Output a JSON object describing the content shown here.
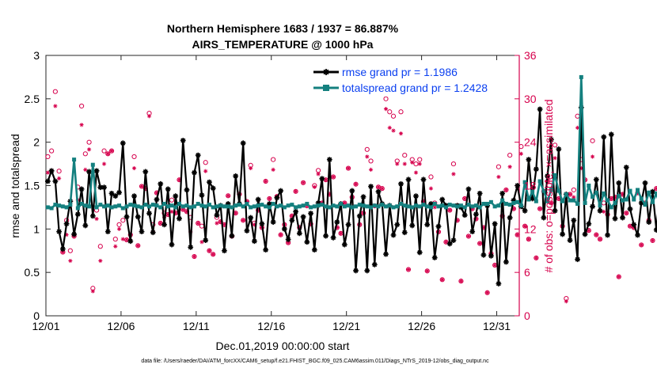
{
  "colors": {
    "rmse": "#000000",
    "spread": "#14807f",
    "obs": "#d6004c",
    "legend_text": "#0a3ff0"
  },
  "icons": {
    "obs_possible_marker": "circle",
    "obs_assimilated_marker": "asterisk",
    "rmse_marker": "asterisk",
    "spread_marker": "square"
  },
  "chart_data": {
    "type": "line",
    "title_line1": "Northern Hemisphere 1683 / 1937 = 86.887%",
    "title_line2": "AIRS_TEMPERATURE @ 1000 hPa",
    "xlabel": "Dec.01,2019 00:00:00 start",
    "ylabel": "rmse and totalspread",
    "ylabel_right": "# of obs: o=possible; ×=assimilated",
    "footnote": "data file: /Users/raeder/DAI/ATM_forcXX/CAM6_setup/f.e21.FHIST_BGC.f09_025.CAM6assim.011/Diags_NTrS_2019-12/obs_diag_output.nc",
    "xlim": [
      0,
      31.5
    ],
    "ylim": [
      0,
      3
    ],
    "ylim_right": [
      0,
      36
    ],
    "x_ticks": [
      0,
      5,
      10,
      15,
      20,
      25,
      30
    ],
    "x_tick_labels": [
      "12/01",
      "12/06",
      "12/11",
      "12/16",
      "12/21",
      "12/26",
      "12/31"
    ],
    "y_ticks": [
      0,
      0.5,
      1,
      1.5,
      2,
      2.5,
      3
    ],
    "y_tick_labels": [
      "0",
      "0.5",
      "1",
      "1.5",
      "2",
      "2.5",
      "3"
    ],
    "y_right_ticks": [
      0,
      6,
      12,
      18,
      24,
      30,
      36
    ],
    "y_right_tick_labels": [
      "0",
      "6",
      "12",
      "18",
      "24",
      "30",
      "36"
    ],
    "legend": {
      "position": "top-right",
      "entries": [
        "rmse grand pr = 1.1986",
        "totalspread grand pr = 1.2428"
      ]
    },
    "dt": 0.25,
    "series": [
      {
        "name": "rmse",
        "values": [
          1.55,
          1.67,
          1.55,
          0.97,
          0.77,
          1.06,
          1.32,
          0.94,
          1.17,
          1.46,
          1.04,
          1.66,
          1.15,
          1.67,
          1.48,
          1.48,
          0.97,
          1.41,
          1.38,
          1.42,
          1.99,
          1.14,
          0.86,
          1.38,
          1.14,
          0.97,
          1.66,
          1.18,
          0.96,
          1.34,
          1.52,
          1.05,
          1.46,
          0.82,
          1.38,
          1.12,
          2.02,
          1.45,
          0.79,
          1.65,
          1.85,
          1.39,
          0.87,
          1.54,
          1.47,
          1.16,
          1.27,
          0.75,
          1.29,
          0.92,
          1.61,
          1.29,
          1.99,
          0.98,
          1.13,
          0.86,
          1.34,
          1.06,
          0.76,
          1.29,
          1.08,
          1.36,
          1.44,
          1.0,
          0.88,
          1.1,
          1.2,
          0.95,
          1.14,
          0.85,
          1.18,
          0.76,
          1.3,
          1.58,
          0.92,
          1.8,
          0.9,
          1.08,
          1.29,
          0.82,
          1.05,
          1.44,
          0.52,
          1.15,
          1.37,
          0.52,
          1.49,
          0.59,
          1.43,
          1.29,
          0.71,
          1.27,
          0.93,
          1.05,
          1.52,
          0.96,
          1.57,
          1.04,
          1.38,
          0.73,
          1.57,
          1.05,
          1.29,
          0.67,
          1.03,
          1.34,
          1.27,
          0.83,
          0.87,
          1.27,
          1.25,
          1.16,
          1.46,
          0.97,
          1.17,
          1.41,
          0.7,
          1.27,
          0.69,
          1.06,
          0.37,
          1.41,
          0.62,
          1.13,
          1.33,
          1.5,
          1.26,
          1.21,
          1.8,
          1.35,
          1.69,
          2.38,
          1.13,
          1.61,
          2.03,
          1.21,
          1.92,
          0.94,
          1.4,
          0.87,
          1.1,
          0.65,
          2.4,
          0.94,
          1.06,
          1.26,
          1.57,
          1.21,
          2.06,
          0.93,
          2.09,
          1.12,
          1.53,
          1.13,
          1.71,
          1.23,
          1.05,
          0.93,
          1.3,
          1.53,
          1.08,
          1.43,
          0.99,
          1.46,
          1.3,
          0.93,
          1.4,
          1.28,
          1.43,
          1.08,
          1.4,
          1.63,
          1.2,
          1.1,
          1.7,
          1.21,
          1.08
        ]
      },
      {
        "name": "totalspread",
        "values": [
          1.25,
          1.24,
          1.28,
          1.27,
          1.26,
          1.25,
          1.28,
          1.8,
          1.24,
          1.29,
          1.27,
          1.26,
          1.74,
          1.25,
          1.28,
          1.26,
          1.27,
          1.25,
          1.26,
          1.27,
          1.24,
          1.26,
          1.28,
          1.27,
          1.26,
          1.25,
          1.28,
          1.26,
          1.28,
          1.27,
          1.25,
          1.29,
          1.26,
          1.27,
          1.25,
          1.29,
          1.26,
          1.27,
          1.25,
          1.26,
          1.29,
          1.27,
          1.26,
          1.28,
          1.25,
          1.26,
          1.27,
          1.26,
          1.26,
          1.25,
          1.27,
          1.28,
          1.26,
          1.29,
          1.25,
          1.26,
          1.27,
          1.28,
          1.26,
          1.25,
          1.29,
          1.26,
          1.27,
          1.25,
          1.27,
          1.28,
          1.25,
          1.26,
          1.27,
          1.29,
          1.25,
          1.26,
          1.27,
          1.28,
          1.26,
          1.25,
          1.27,
          1.26,
          1.29,
          1.26,
          1.27,
          1.25,
          1.26,
          1.28,
          1.27,
          1.26,
          1.25,
          1.27,
          1.26,
          1.28,
          1.26,
          1.27,
          1.25,
          1.26,
          1.29,
          1.27,
          1.26,
          1.25,
          1.27,
          1.26,
          1.28,
          1.26,
          1.25,
          1.29,
          1.26,
          1.27,
          1.25,
          1.28,
          1.27,
          1.26,
          1.27,
          1.25,
          1.28,
          1.26,
          1.27,
          1.25,
          1.29,
          1.29,
          1.31,
          1.26,
          1.27,
          1.33,
          1.29,
          1.28,
          1.3,
          1.31,
          1.27,
          1.54,
          1.34,
          1.43,
          1.32,
          1.55,
          1.44,
          1.32,
          1.45,
          1.62,
          1.44,
          1.32,
          1.4,
          1.33,
          1.33,
          1.29,
          2.75,
          1.3,
          1.5,
          1.37,
          1.42,
          1.27,
          1.41,
          1.33,
          1.25,
          1.3,
          1.38,
          1.33,
          1.34,
          1.44,
          1.34,
          1.45,
          1.35,
          1.28,
          1.42,
          1.31,
          1.41,
          1.26,
          1.31,
          1.29,
          1.38,
          1.29,
          1.36,
          1.33,
          2.19,
          1.38,
          1.34,
          1.31,
          1.45,
          2.05,
          1.33,
          1.28
        ]
      },
      {
        "name": "obs possible",
        "values": [
          22,
          22.8,
          31,
          20,
          8.8,
          13.2,
          9,
          11,
          17.8,
          29,
          22.4,
          24,
          3.8,
          14.6,
          9.6,
          22.8,
          22.4,
          22.8,
          10.6,
          12.6,
          13.2,
          10.5,
          11.2,
          22,
          9.7,
          17.9,
          17.6,
          28,
          12.6,
          17,
          12.8,
          14.2,
          14,
          16,
          14.2,
          18.8,
          14.7,
          14.4,
          13.6,
          8.2,
          12.8,
          12.4,
          21.2,
          9,
          8.5,
          13.6,
          13,
          12.6,
          16.6,
          11,
          14.2,
          16.8,
          13.2,
          15.8,
          20.8,
          12.8,
          14.6,
          12.2,
          18.6,
          16.2,
          21.6,
          16.5,
          11.2,
          12.6,
          10.1,
          13.8,
          17.2,
          12.2,
          18.4,
          15.2,
          12.7,
          18,
          20.1,
          15.6,
          18.8,
          16.8,
          19.2,
          12.2,
          11.4,
          15.6,
          20.4,
          16.4,
          18.2,
          12.6,
          14.2,
          23,
          21.4,
          15.2,
          17.8,
          17.6,
          30,
          28.2,
          27.6,
          21.4,
          28.2,
          22.2,
          6.4,
          21.6,
          21,
          21.6,
          15.8,
          6.2,
          19.2,
          15.6,
          11.6,
          5,
          10.2,
          14.6,
          21,
          13.2,
          4.8,
          16.2,
          11,
          14.8,
          13.4,
          10,
          12.2,
          3.2,
          8.6,
          7,
          20.6,
          13.8,
          17.4,
          22.2,
          14.8,
          11.2,
          23.4,
          12.4,
          10.6,
          17.6,
          8,
          14.8,
          17.2,
          18.6,
          15.6,
          23.6,
          16.2,
          12.4,
          2.4,
          16.8,
          17.4,
          27.6,
          21.6,
          18.8,
          11.8,
          24.2,
          11.2,
          10.6,
          15.6,
          14,
          16.2,
          16.4,
          5.4,
          16.8,
          14.2,
          12.4,
          12.2,
          17,
          9.8,
          15.6,
          13.2,
          10.4,
          17.6,
          18.4,
          6.2,
          12.4,
          11.2,
          14.4,
          6.6,
          11,
          13.6,
          6,
          17.6,
          16,
          12.6,
          14.8,
          14.4,
          11.6,
          14.6,
          6,
          8.6,
          12.5,
          16.2,
          15.4
        ]
      },
      {
        "name": "obs assimilated",
        "values": [
          19.8,
          20.1,
          29,
          19,
          8.8,
          11.2,
          7.6,
          11,
          16,
          26.4,
          20.2,
          23,
          3.4,
          13.4,
          7.6,
          21,
          22.4,
          22.8,
          9.6,
          12,
          10.6,
          10.5,
          11.2,
          20.4,
          9.7,
          17.9,
          17.6,
          27.6,
          11.6,
          17,
          12.8,
          13.6,
          14,
          14.4,
          14.2,
          18.8,
          14.7,
          14.4,
          11.6,
          8.2,
          12.8,
          10.2,
          20,
          9,
          8.5,
          12.8,
          13,
          12.6,
          16.6,
          11,
          14.2,
          16.8,
          13.2,
          15.8,
          20.4,
          12.6,
          14.6,
          12.2,
          18.6,
          16.2,
          20.2,
          16.5,
          11.2,
          12.6,
          10.1,
          13.8,
          17.2,
          12.2,
          18.4,
          15.2,
          12.7,
          17.8,
          19.6,
          15.6,
          18.8,
          16.8,
          19.2,
          12.2,
          11.4,
          15.6,
          20.4,
          16.4,
          18.2,
          12.6,
          14.2,
          22,
          20.2,
          15.2,
          17.8,
          17.6,
          28.6,
          26,
          25.6,
          21,
          25.2,
          21,
          6.4,
          21.2,
          19.8,
          21,
          15.8,
          6.2,
          17.6,
          15,
          11.6,
          5,
          10.2,
          14.6,
          19.6,
          13.2,
          4.8,
          16.2,
          11,
          14.8,
          13.4,
          10,
          12.2,
          3.2,
          8.6,
          7,
          19.2,
          13.8,
          17.4,
          20.6,
          14.8,
          11.2,
          22.4,
          12.4,
          10.6,
          17.6,
          8,
          14.8,
          17.2,
          18.6,
          15.6,
          21.8,
          16.2,
          12.4,
          2,
          16.8,
          16.4,
          26,
          20.4,
          18.8,
          11.8,
          22,
          11.2,
          10.6,
          14.4,
          14,
          16.2,
          16.4,
          5.4,
          16.8,
          14.2,
          12.4,
          12.2,
          17,
          9.8,
          15.6,
          13.2,
          10.4,
          17.6,
          18.4,
          6.2,
          12.4,
          11.2,
          14.4,
          6.6,
          11,
          13.6,
          6,
          17.6,
          16,
          12.6,
          14.8,
          14.4,
          11.6,
          14.6,
          6,
          8.6,
          12.5,
          16.2,
          15.4
        ]
      }
    ]
  }
}
